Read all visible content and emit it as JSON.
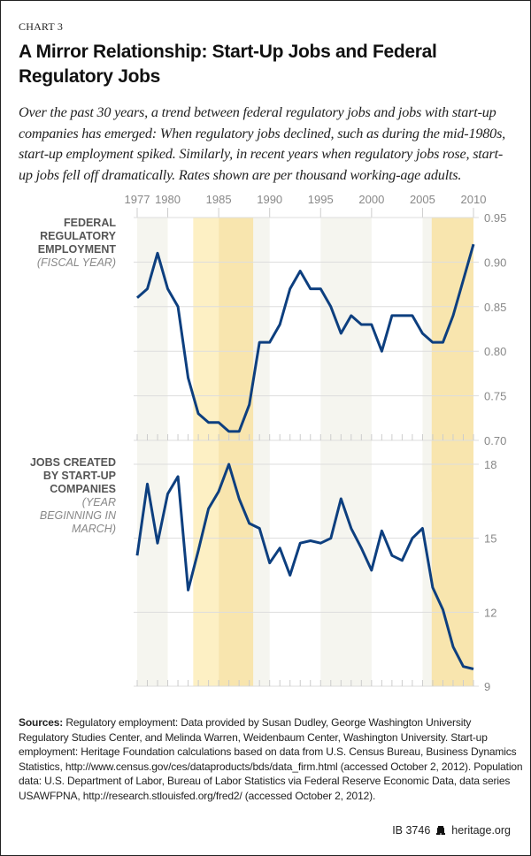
{
  "kicker": "CHART 3",
  "title": "A Mirror Relationship: Start-Up Jobs and Federal Regulatory Jobs",
  "subtitle": "Over the past 30 years, a trend between federal regulatory jobs and jobs with start-up companies has emerged: When regulatory jobs declined, such as during the mid-1980s, start-up employment spiked. Similarly, in recent years when regulatory jobs rose, start-up jobs fell off dramatically. Rates shown are per thousand working-age adults.",
  "colors": {
    "line": "#0d3f7f",
    "band_light_yellow": "#fdf0c4",
    "band_yellow": "#f8e5ae",
    "band_grey": "#f5f5ef",
    "grid": "#dddddd",
    "tick_text": "#888888"
  },
  "chart_data": [
    {
      "type": "line",
      "label": "FEDERAL REGULATORY EMPLOYMENT",
      "note": "(FISCAL YEAR)",
      "x": [
        1977,
        1978,
        1979,
        1980,
        1981,
        1982,
        1983,
        1984,
        1985,
        1986,
        1987,
        1988,
        1989,
        1990,
        1991,
        1992,
        1993,
        1994,
        1995,
        1996,
        1997,
        1998,
        1999,
        2000,
        2001,
        2002,
        2003,
        2004,
        2005,
        2006,
        2007,
        2008,
        2009,
        2010
      ],
      "values": [
        0.86,
        0.87,
        0.91,
        0.87,
        0.85,
        0.77,
        0.73,
        0.72,
        0.72,
        0.71,
        0.71,
        0.74,
        0.81,
        0.81,
        0.83,
        0.87,
        0.89,
        0.87,
        0.87,
        0.85,
        0.82,
        0.84,
        0.83,
        0.83,
        0.8,
        0.84,
        0.84,
        0.84,
        0.82,
        0.81,
        0.81,
        0.84,
        0.88,
        0.92
      ],
      "ylim": [
        0.7,
        0.95
      ],
      "yticks": [
        "0.95",
        "0.90",
        "0.85",
        "0.80",
        "0.75",
        "0.70"
      ],
      "ytick_values": [
        0.95,
        0.9,
        0.85,
        0.8,
        0.75,
        0.7
      ],
      "xticks": [
        "1977",
        "1980",
        "1985",
        "1990",
        "1995",
        "2000",
        "2005",
        "2010"
      ],
      "xtick_values": [
        1977,
        1980,
        1985,
        1990,
        1995,
        2000,
        2005,
        2010
      ],
      "grid": true
    },
    {
      "type": "line",
      "label": "JOBS CREATED BY START-UP COMPANIES",
      "note": "(YEAR BEGINNING IN MARCH)",
      "x": [
        1977,
        1978,
        1979,
        1980,
        1981,
        1982,
        1983,
        1984,
        1985,
        1986,
        1987,
        1988,
        1989,
        1990,
        1991,
        1992,
        1993,
        1994,
        1995,
        1996,
        1997,
        1998,
        1999,
        2000,
        2001,
        2002,
        2003,
        2004,
        2005,
        2006,
        2007,
        2008,
        2009,
        2010
      ],
      "values": [
        14.3,
        17.2,
        14.8,
        16.8,
        17.5,
        12.9,
        14.5,
        16.2,
        16.9,
        18.0,
        16.6,
        15.6,
        15.4,
        14.0,
        14.6,
        13.5,
        14.8,
        14.9,
        14.8,
        15.0,
        16.6,
        15.4,
        14.6,
        13.7,
        15.3,
        14.3,
        14.1,
        15.0,
        15.4,
        13.0,
        12.1,
        10.6,
        9.8,
        9.7
      ],
      "ylim": [
        9,
        18
      ],
      "yticks": [
        "18",
        "15",
        "12",
        "9"
      ],
      "ytick_values": [
        18,
        15,
        12,
        9
      ],
      "grid": true
    }
  ],
  "bands": [
    {
      "from": 1977,
      "to": 1980,
      "tone": "grey"
    },
    {
      "from": 1982.5,
      "to": 1985,
      "tone": "light_yellow"
    },
    {
      "from": 1985,
      "to": 1988.4,
      "tone": "yellow"
    },
    {
      "from": 1988.4,
      "to": 1990,
      "tone": "grey"
    },
    {
      "from": 1995,
      "to": 2000,
      "tone": "grey"
    },
    {
      "from": 2005,
      "to": 2005.9,
      "tone": "grey"
    },
    {
      "from": 2005.9,
      "to": 2010,
      "tone": "yellow"
    }
  ],
  "sources": {
    "label": "Sources:",
    "text": "Regulatory employment: Data provided by Susan Dudley, George Washington University Regulatory Studies Center, and Melinda Warren, Weidenbaum Center, Washington University. Start-up employment: Heritage Foundation calculations based on data from U.S. Census Bureau, Business Dynamics Statistics, http://www.census.gov/ces/dataproducts/bds/data_firm.html (accessed October 2, 2012). Population data: U.S. Department of Labor, Bureau of Labor Statistics via Federal Reserve Economic Data, data series USAWFPNA, http://research.stlouisfed.org/fred2/ (accessed October 2, 2012)."
  },
  "footer": {
    "code": "IB 3746",
    "site": "heritage.org",
    "logo_icon": "liberty-bell-icon"
  }
}
